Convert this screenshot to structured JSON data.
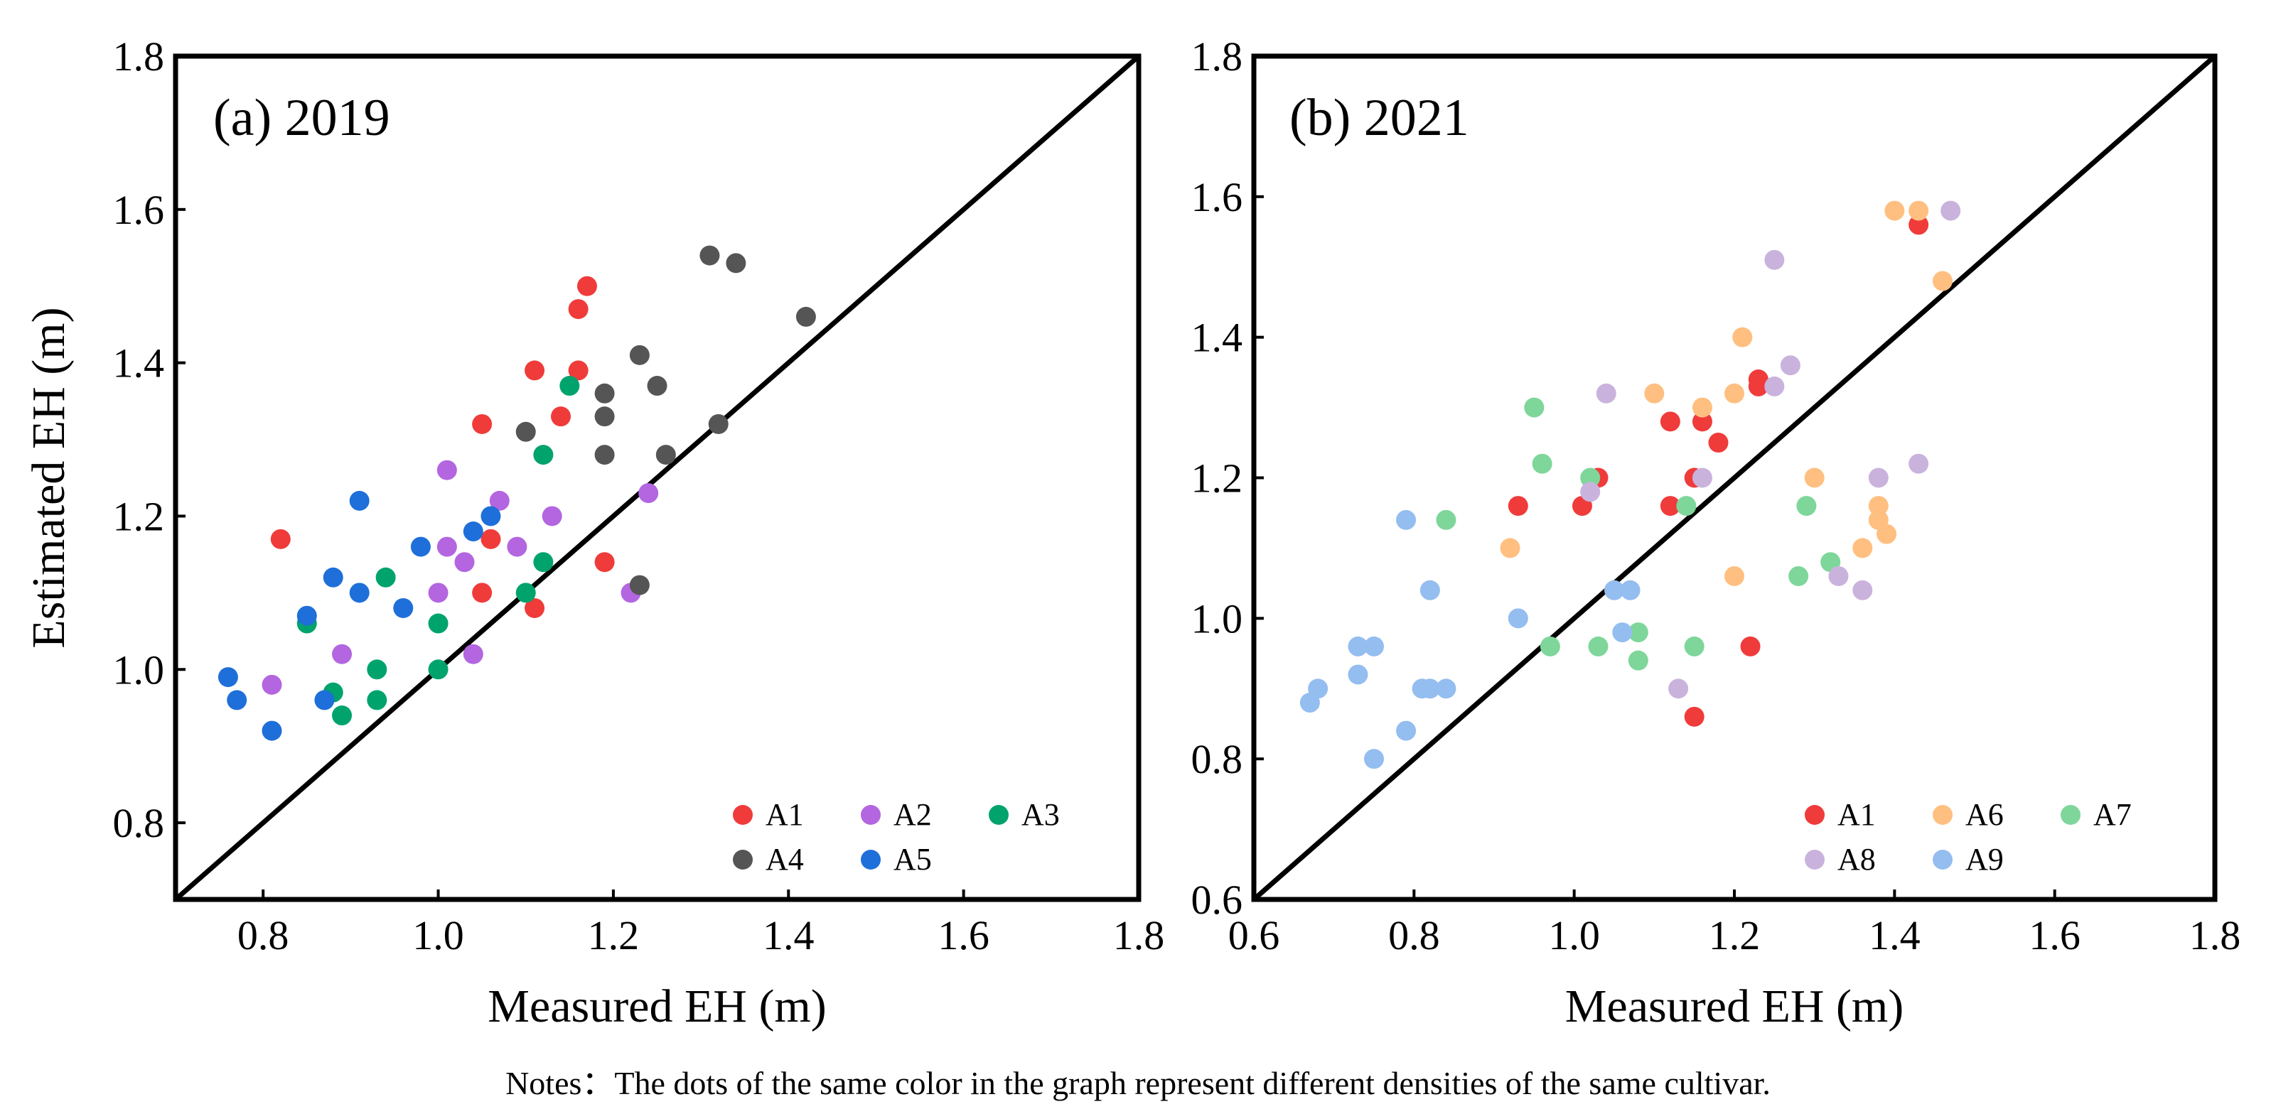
{
  "chart_data": [
    {
      "type": "scatter",
      "title": "(a) 2019",
      "xlabel": "Measured EH (m)",
      "ylabel": "Estimated EH (m)",
      "xlim": [
        0.7,
        1.8
      ],
      "ylim": [
        0.7,
        1.8
      ],
      "xticks": [
        "0.8",
        "1.0",
        "1.2",
        "1.4",
        "1.6",
        "1.8"
      ],
      "yticks": [
        "0.8",
        "1.0",
        "1.2",
        "1.4",
        "1.6",
        "1.8"
      ],
      "reference_line": "1:1",
      "legend_position": "bottom-right",
      "series": [
        {
          "name": "A1",
          "color": "#f03b3b",
          "points": [
            [
              0.82,
              1.17
            ],
            [
              1.05,
              1.32
            ],
            [
              1.11,
              1.39
            ],
            [
              1.16,
              1.47
            ],
            [
              1.17,
              1.5
            ],
            [
              1.16,
              1.39
            ],
            [
              1.14,
              1.33
            ],
            [
              1.06,
              1.17
            ],
            [
              1.05,
              1.1
            ],
            [
              1.11,
              1.08
            ],
            [
              1.19,
              1.14
            ]
          ]
        },
        {
          "name": "A2",
          "color": "#b366e0",
          "points": [
            [
              1.01,
              1.26
            ],
            [
              1.07,
              1.22
            ],
            [
              1.09,
              1.16
            ],
            [
              1.01,
              1.16
            ],
            [
              1.03,
              1.14
            ],
            [
              1.0,
              1.1
            ],
            [
              0.89,
              1.02
            ],
            [
              1.04,
              1.02
            ],
            [
              0.81,
              0.98
            ],
            [
              1.13,
              1.2
            ],
            [
              1.24,
              1.23
            ],
            [
              1.22,
              1.1
            ]
          ]
        },
        {
          "name": "A3",
          "color": "#00a36c",
          "points": [
            [
              1.15,
              1.37
            ],
            [
              1.12,
              1.28
            ],
            [
              0.94,
              1.12
            ],
            [
              0.85,
              1.06
            ],
            [
              1.0,
              1.06
            ],
            [
              1.0,
              1.0
            ],
            [
              0.93,
              1.0
            ],
            [
              0.88,
              0.97
            ],
            [
              0.89,
              0.94
            ],
            [
              0.93,
              0.96
            ],
            [
              1.12,
              1.14
            ],
            [
              1.1,
              1.1
            ]
          ]
        },
        {
          "name": "A4",
          "color": "#555555",
          "points": [
            [
              1.31,
              1.54
            ],
            [
              1.34,
              1.53
            ],
            [
              1.42,
              1.46
            ],
            [
              1.23,
              1.41
            ],
            [
              1.25,
              1.37
            ],
            [
              1.19,
              1.36
            ],
            [
              1.19,
              1.33
            ],
            [
              1.1,
              1.31
            ],
            [
              1.32,
              1.32
            ],
            [
              1.19,
              1.28
            ],
            [
              1.26,
              1.28
            ],
            [
              1.23,
              1.11
            ]
          ]
        },
        {
          "name": "A5",
          "color": "#1e6fd9",
          "points": [
            [
              0.91,
              1.22
            ],
            [
              1.06,
              1.2
            ],
            [
              0.98,
              1.16
            ],
            [
              1.04,
              1.18
            ],
            [
              0.88,
              1.12
            ],
            [
              0.91,
              1.1
            ],
            [
              0.96,
              1.08
            ],
            [
              0.85,
              1.07
            ],
            [
              0.76,
              0.99
            ],
            [
              0.77,
              0.96
            ],
            [
              0.81,
              0.92
            ],
            [
              0.87,
              0.96
            ]
          ]
        }
      ]
    },
    {
      "type": "scatter",
      "title": "(b) 2021",
      "xlabel": "Measured EH (m)",
      "ylabel": "",
      "xlim": [
        0.6,
        1.8
      ],
      "ylim": [
        0.6,
        1.8
      ],
      "xticks": [
        "0.6",
        "0.8",
        "1.0",
        "1.2",
        "1.4",
        "1.6",
        "1.8"
      ],
      "yticks": [
        "0.6",
        "0.8",
        "1.0",
        "1.2",
        "1.4",
        "1.6",
        "1.8"
      ],
      "reference_line": "1:1",
      "legend_position": "bottom-right",
      "series": [
        {
          "name": "A1",
          "color": "#f03b3b",
          "points": [
            [
              1.43,
              1.56
            ],
            [
              1.23,
              1.34
            ],
            [
              1.23,
              1.33
            ],
            [
              1.16,
              1.28
            ],
            [
              1.12,
              1.28
            ],
            [
              1.18,
              1.25
            ],
            [
              1.15,
              1.2
            ],
            [
              1.03,
              1.2
            ],
            [
              0.93,
              1.16
            ],
            [
              1.01,
              1.16
            ],
            [
              1.12,
              1.16
            ],
            [
              1.22,
              0.96
            ],
            [
              1.15,
              0.86
            ]
          ]
        },
        {
          "name": "A6",
          "color": "#ffbf80",
          "points": [
            [
              1.4,
              1.58
            ],
            [
              1.43,
              1.58
            ],
            [
              1.46,
              1.48
            ],
            [
              1.21,
              1.4
            ],
            [
              1.1,
              1.32
            ],
            [
              1.2,
              1.32
            ],
            [
              1.16,
              1.3
            ],
            [
              1.3,
              1.2
            ],
            [
              1.38,
              1.16
            ],
            [
              1.38,
              1.14
            ],
            [
              1.39,
              1.12
            ],
            [
              1.36,
              1.1
            ],
            [
              0.92,
              1.1
            ],
            [
              1.2,
              1.06
            ]
          ]
        },
        {
          "name": "A7",
          "color": "#7ed69a",
          "points": [
            [
              0.95,
              1.3
            ],
            [
              0.96,
              1.22
            ],
            [
              1.02,
              1.2
            ],
            [
              1.14,
              1.16
            ],
            [
              1.29,
              1.16
            ],
            [
              0.84,
              1.14
            ],
            [
              1.32,
              1.08
            ],
            [
              1.28,
              1.06
            ],
            [
              1.08,
              0.98
            ],
            [
              1.15,
              0.96
            ],
            [
              0.97,
              0.96
            ],
            [
              1.03,
              0.96
            ],
            [
              1.08,
              0.94
            ]
          ]
        },
        {
          "name": "A8",
          "color": "#c9b3dd",
          "points": [
            [
              1.47,
              1.58
            ],
            [
              1.25,
              1.51
            ],
            [
              1.27,
              1.36
            ],
            [
              1.25,
              1.33
            ],
            [
              1.04,
              1.32
            ],
            [
              1.16,
              1.2
            ],
            [
              1.38,
              1.2
            ],
            [
              1.43,
              1.22
            ],
            [
              1.02,
              1.18
            ],
            [
              1.33,
              1.06
            ],
            [
              1.36,
              1.04
            ],
            [
              1.13,
              0.9
            ]
          ]
        },
        {
          "name": "A9",
          "color": "#94bdf0",
          "points": [
            [
              0.79,
              1.14
            ],
            [
              0.82,
              1.04
            ],
            [
              0.93,
              1.0
            ],
            [
              1.05,
              1.04
            ],
            [
              1.07,
              1.04
            ],
            [
              1.06,
              0.98
            ],
            [
              0.73,
              0.96
            ],
            [
              0.75,
              0.96
            ],
            [
              0.73,
              0.92
            ],
            [
              0.68,
              0.9
            ],
            [
              0.81,
              0.9
            ],
            [
              0.82,
              0.9
            ],
            [
              0.84,
              0.9
            ],
            [
              0.67,
              0.88
            ],
            [
              0.79,
              0.84
            ],
            [
              0.75,
              0.8
            ]
          ]
        }
      ]
    }
  ],
  "notes": "Notes：The dots of the same color in the graph represent different densities of the same cultivar."
}
